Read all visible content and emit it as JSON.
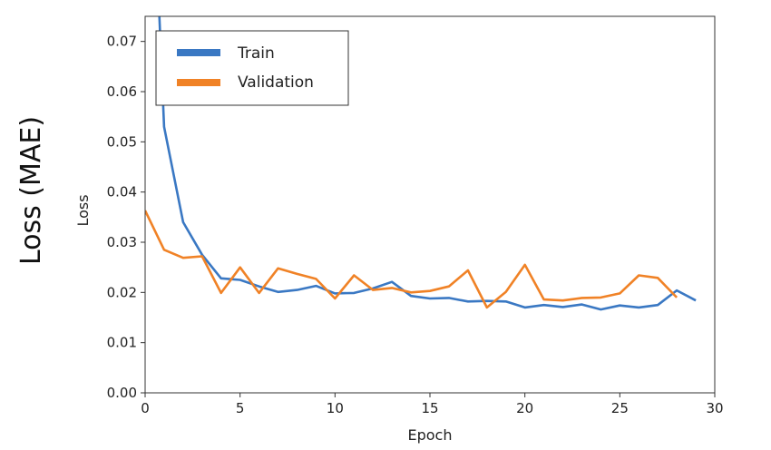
{
  "outer_ylabel": "Loss (MAE)",
  "chart_data": {
    "type": "line",
    "xlabel": "Epoch",
    "ylabel": "Loss",
    "xlim": [
      0,
      30
    ],
    "ylim": [
      0,
      0.075
    ],
    "xticks": [
      0,
      5,
      10,
      15,
      20,
      25,
      30
    ],
    "yticks": [
      "0.00",
      "0.01",
      "0.02",
      "0.03",
      "0.04",
      "0.05",
      "0.06",
      "0.07"
    ],
    "grid": false,
    "legend_position": "top-left",
    "series": [
      {
        "name": "Train",
        "color": "#3a78c3",
        "x": [
          0.75,
          1,
          2,
          3,
          4,
          5,
          6,
          7,
          8,
          9,
          10,
          11,
          12,
          13,
          14,
          15,
          16,
          17,
          18,
          19,
          20,
          21,
          22,
          23,
          24,
          25,
          26,
          27,
          28,
          29
        ],
        "values": [
          0.075,
          0.053,
          0.034,
          0.0275,
          0.0228,
          0.0225,
          0.0212,
          0.0201,
          0.0205,
          0.0213,
          0.0198,
          0.0199,
          0.0208,
          0.0221,
          0.0193,
          0.0188,
          0.0189,
          0.0182,
          0.0183,
          0.0182,
          0.017,
          0.0175,
          0.0171,
          0.0176,
          0.0166,
          0.0174,
          0.017,
          0.0175,
          0.0204,
          0.0184
        ]
      },
      {
        "name": "Validation",
        "color": "#f08226",
        "x": [
          0,
          1,
          2,
          3,
          4,
          5,
          6,
          7,
          8,
          9,
          10,
          11,
          12,
          13,
          14,
          15,
          16,
          17,
          18,
          19,
          20,
          21,
          22,
          23,
          24,
          25,
          26,
          27,
          28
        ],
        "values": [
          0.0363,
          0.0285,
          0.0269,
          0.0272,
          0.0199,
          0.025,
          0.0199,
          0.0248,
          0.0237,
          0.0227,
          0.0188,
          0.0234,
          0.0205,
          0.0209,
          0.02,
          0.0203,
          0.0212,
          0.0244,
          0.017,
          0.0201,
          0.0255,
          0.0186,
          0.0184,
          0.0189,
          0.019,
          0.0198,
          0.0234,
          0.0229,
          0.019
        ]
      }
    ]
  }
}
